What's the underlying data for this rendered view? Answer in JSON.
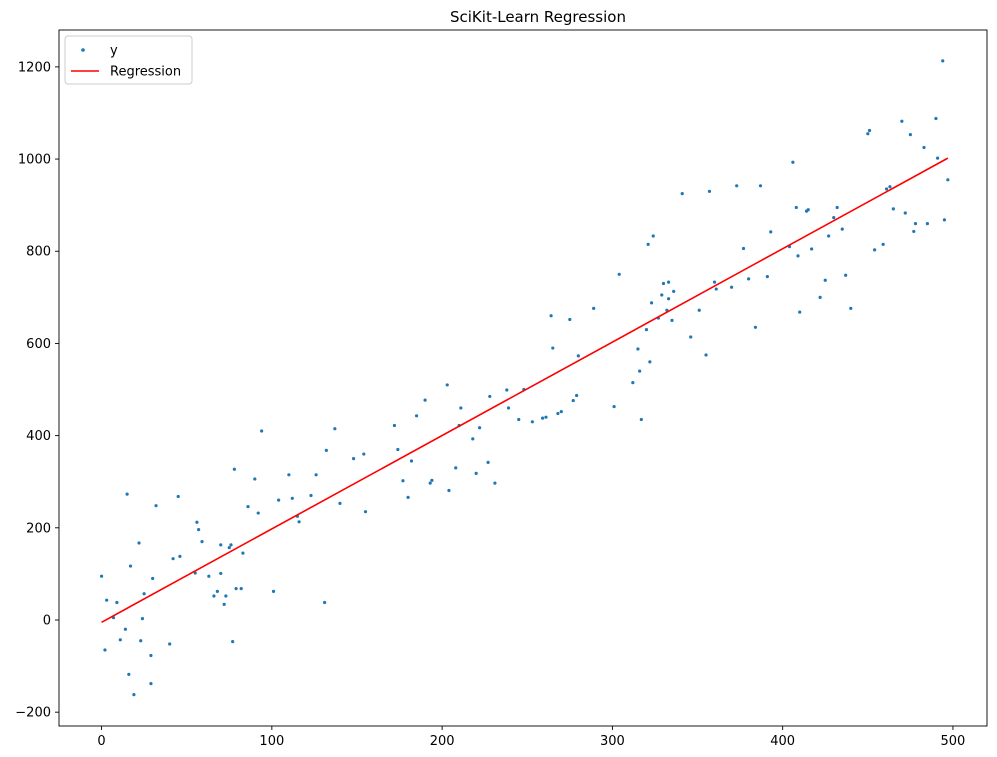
{
  "chart_data": {
    "type": "scatter",
    "title": "SciKit-Learn Regression",
    "xlabel": "",
    "ylabel": "",
    "xlim": [
      -25,
      520
    ],
    "ylim": [
      -230,
      1280
    ],
    "xticks": [
      0,
      100,
      200,
      300,
      400,
      500
    ],
    "yticks": [
      -200,
      0,
      200,
      400,
      600,
      800,
      1000,
      1200
    ],
    "grid": false,
    "legend": {
      "position": "top-left",
      "entries": [
        "y",
        "Regression"
      ]
    },
    "colors": {
      "points": "#1f77b4",
      "regression": "#ff0000"
    },
    "series": [
      {
        "name": "y",
        "kind": "scatter",
        "points": [
          [
            0,
            95
          ],
          [
            2,
            -65
          ],
          [
            3,
            43
          ],
          [
            7,
            5
          ],
          [
            9,
            38
          ],
          [
            11,
            -43
          ],
          [
            14,
            -20
          ],
          [
            15,
            273
          ],
          [
            16,
            -118
          ],
          [
            17,
            117
          ],
          [
            19,
            -162
          ],
          [
            22,
            167
          ],
          [
            23,
            -45
          ],
          [
            24,
            3
          ],
          [
            25,
            57
          ],
          [
            29,
            -77
          ],
          [
            29,
            -138
          ],
          [
            30,
            90
          ],
          [
            32,
            248
          ],
          [
            40,
            -52
          ],
          [
            42,
            133
          ],
          [
            45,
            268
          ],
          [
            46,
            138
          ],
          [
            55,
            102
          ],
          [
            56,
            212
          ],
          [
            57,
            196
          ],
          [
            59,
            170
          ],
          [
            63,
            95
          ],
          [
            66,
            52
          ],
          [
            68,
            62
          ],
          [
            70,
            163
          ],
          [
            70,
            101
          ],
          [
            72,
            34
          ],
          [
            73,
            52
          ],
          [
            75,
            157
          ],
          [
            76,
            163
          ],
          [
            77,
            -47
          ],
          [
            78,
            327
          ],
          [
            79,
            68
          ],
          [
            82,
            68
          ],
          [
            83,
            145
          ],
          [
            86,
            246
          ],
          [
            90,
            306
          ],
          [
            92,
            232
          ],
          [
            94,
            410
          ],
          [
            101,
            62
          ],
          [
            104,
            260
          ],
          [
            110,
            315
          ],
          [
            112,
            264
          ],
          [
            115,
            225
          ],
          [
            116,
            213
          ],
          [
            123,
            270
          ],
          [
            126,
            315
          ],
          [
            131,
            38
          ],
          [
            132,
            368
          ],
          [
            137,
            415
          ],
          [
            140,
            253
          ],
          [
            148,
            350
          ],
          [
            154,
            360
          ],
          [
            155,
            235
          ],
          [
            172,
            422
          ],
          [
            174,
            370
          ],
          [
            177,
            302
          ],
          [
            180,
            266
          ],
          [
            182,
            345
          ],
          [
            185,
            443
          ],
          [
            190,
            477
          ],
          [
            193,
            297
          ],
          [
            194,
            303
          ],
          [
            203,
            510
          ],
          [
            204,
            281
          ],
          [
            208,
            330
          ],
          [
            210,
            422
          ],
          [
            211,
            460
          ],
          [
            218,
            393
          ],
          [
            220,
            318
          ],
          [
            222,
            417
          ],
          [
            227,
            342
          ],
          [
            228,
            485
          ],
          [
            231,
            297
          ],
          [
            238,
            499
          ],
          [
            239,
            460
          ],
          [
            245,
            435
          ],
          [
            248,
            500
          ],
          [
            253,
            430
          ],
          [
            259,
            438
          ],
          [
            261,
            440
          ],
          [
            264,
            660
          ],
          [
            265,
            590
          ],
          [
            268,
            448
          ],
          [
            270,
            452
          ],
          [
            275,
            652
          ],
          [
            277,
            476
          ],
          [
            279,
            487
          ],
          [
            280,
            573
          ],
          [
            289,
            676
          ],
          [
            301,
            463
          ],
          [
            304,
            750
          ],
          [
            312,
            515
          ],
          [
            315,
            588
          ],
          [
            316,
            540
          ],
          [
            317,
            435
          ],
          [
            320,
            630
          ],
          [
            321,
            815
          ],
          [
            322,
            560
          ],
          [
            323,
            688
          ],
          [
            324,
            833
          ],
          [
            327,
            655
          ],
          [
            329,
            705
          ],
          [
            330,
            730
          ],
          [
            332,
            672
          ],
          [
            333,
            733
          ],
          [
            333,
            697
          ],
          [
            335,
            650
          ],
          [
            336,
            713
          ],
          [
            341,
            925
          ],
          [
            346,
            614
          ],
          [
            351,
            672
          ],
          [
            355,
            575
          ],
          [
            357,
            930
          ],
          [
            360,
            733
          ],
          [
            361,
            718
          ],
          [
            370,
            722
          ],
          [
            373,
            942
          ],
          [
            377,
            806
          ],
          [
            380,
            740
          ],
          [
            384,
            635
          ],
          [
            387,
            942
          ],
          [
            391,
            745
          ],
          [
            393,
            842
          ],
          [
            404,
            810
          ],
          [
            406,
            993
          ],
          [
            408,
            895
          ],
          [
            409,
            790
          ],
          [
            410,
            668
          ],
          [
            414,
            887
          ],
          [
            415,
            890
          ],
          [
            417,
            805
          ],
          [
            422,
            700
          ],
          [
            425,
            737
          ],
          [
            427,
            833
          ],
          [
            430,
            873
          ],
          [
            432,
            895
          ],
          [
            435,
            848
          ],
          [
            437,
            748
          ],
          [
            440,
            676
          ],
          [
            450,
            1055
          ],
          [
            451,
            1062
          ],
          [
            454,
            803
          ],
          [
            459,
            815
          ],
          [
            461,
            935
          ],
          [
            463,
            940
          ],
          [
            465,
            892
          ],
          [
            470,
            1082
          ],
          [
            472,
            883
          ],
          [
            475,
            1053
          ],
          [
            477,
            843
          ],
          [
            478,
            860
          ],
          [
            483,
            1025
          ],
          [
            485,
            860
          ],
          [
            490,
            1088
          ],
          [
            491,
            1002
          ],
          [
            494,
            1213
          ],
          [
            495,
            868
          ],
          [
            497,
            955
          ]
        ]
      },
      {
        "name": "Regression",
        "kind": "line",
        "x": [
          0,
          497
        ],
        "y": [
          -5,
          1002
        ]
      }
    ]
  }
}
